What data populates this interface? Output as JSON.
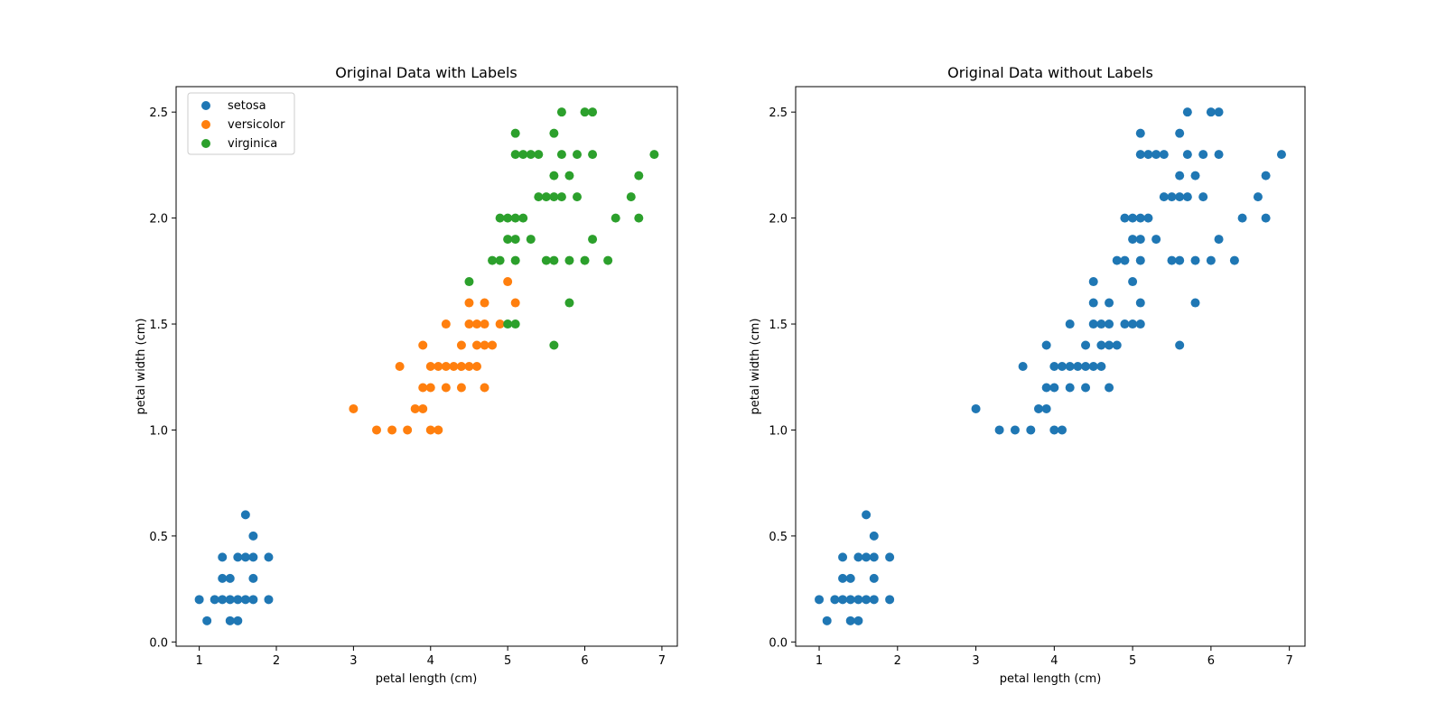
{
  "chart_data": [
    {
      "type": "scatter",
      "title": "Original Data with Labels",
      "xlabel": "petal length (cm)",
      "ylabel": "petal width (cm)",
      "xlim": [
        0.7,
        7.2
      ],
      "ylim": [
        -0.02,
        2.62
      ],
      "xticks": [
        1,
        2,
        3,
        4,
        5,
        6,
        7
      ],
      "yticks": [
        0.0,
        0.5,
        1.0,
        1.5,
        2.0,
        2.5
      ],
      "grid": false,
      "legend": "top-left",
      "series": [
        {
          "name": "setosa",
          "color": "#1f77b4",
          "points": [
            [
              1.0,
              0.2
            ],
            [
              1.1,
              0.1
            ],
            [
              1.2,
              0.2
            ],
            [
              1.3,
              0.2
            ],
            [
              1.3,
              0.3
            ],
            [
              1.3,
              0.4
            ],
            [
              1.4,
              0.1
            ],
            [
              1.4,
              0.2
            ],
            [
              1.4,
              0.3
            ],
            [
              1.5,
              0.1
            ],
            [
              1.5,
              0.2
            ],
            [
              1.5,
              0.4
            ],
            [
              1.6,
              0.2
            ],
            [
              1.6,
              0.4
            ],
            [
              1.6,
              0.6
            ],
            [
              1.7,
              0.2
            ],
            [
              1.7,
              0.3
            ],
            [
              1.7,
              0.4
            ],
            [
              1.7,
              0.5
            ],
            [
              1.9,
              0.2
            ],
            [
              1.9,
              0.4
            ]
          ]
        },
        {
          "name": "versicolor",
          "color": "#ff7f0e",
          "points": [
            [
              3.0,
              1.1
            ],
            [
              3.3,
              1.0
            ],
            [
              3.5,
              1.0
            ],
            [
              3.6,
              1.3
            ],
            [
              3.7,
              1.0
            ],
            [
              3.8,
              1.1
            ],
            [
              3.9,
              1.1
            ],
            [
              3.9,
              1.2
            ],
            [
              3.9,
              1.4
            ],
            [
              4.0,
              1.0
            ],
            [
              4.0,
              1.2
            ],
            [
              4.0,
              1.3
            ],
            [
              4.1,
              1.0
            ],
            [
              4.1,
              1.3
            ],
            [
              4.2,
              1.2
            ],
            [
              4.2,
              1.3
            ],
            [
              4.2,
              1.5
            ],
            [
              4.3,
              1.3
            ],
            [
              4.4,
              1.2
            ],
            [
              4.4,
              1.3
            ],
            [
              4.4,
              1.4
            ],
            [
              4.5,
              1.3
            ],
            [
              4.5,
              1.5
            ],
            [
              4.5,
              1.6
            ],
            [
              4.6,
              1.3
            ],
            [
              4.6,
              1.4
            ],
            [
              4.6,
              1.5
            ],
            [
              4.7,
              1.2
            ],
            [
              4.7,
              1.4
            ],
            [
              4.7,
              1.5
            ],
            [
              4.7,
              1.6
            ],
            [
              4.8,
              1.4
            ],
            [
              4.9,
              1.5
            ],
            [
              5.0,
              1.7
            ],
            [
              5.1,
              1.6
            ]
          ]
        },
        {
          "name": "virginica",
          "color": "#2ca02c",
          "points": [
            [
              4.5,
              1.7
            ],
            [
              4.8,
              1.8
            ],
            [
              4.9,
              1.8
            ],
            [
              4.9,
              2.0
            ],
            [
              5.0,
              1.5
            ],
            [
              5.0,
              1.9
            ],
            [
              5.0,
              2.0
            ],
            [
              5.1,
              1.5
            ],
            [
              5.1,
              1.8
            ],
            [
              5.1,
              1.9
            ],
            [
              5.1,
              2.0
            ],
            [
              5.1,
              2.3
            ],
            [
              5.1,
              2.4
            ],
            [
              5.2,
              2.0
            ],
            [
              5.2,
              2.3
            ],
            [
              5.3,
              1.9
            ],
            [
              5.3,
              2.3
            ],
            [
              5.4,
              2.1
            ],
            [
              5.4,
              2.3
            ],
            [
              5.5,
              1.8
            ],
            [
              5.5,
              2.1
            ],
            [
              5.6,
              1.4
            ],
            [
              5.6,
              1.8
            ],
            [
              5.6,
              2.1
            ],
            [
              5.6,
              2.2
            ],
            [
              5.6,
              2.4
            ],
            [
              5.7,
              2.1
            ],
            [
              5.7,
              2.3
            ],
            [
              5.7,
              2.5
            ],
            [
              5.8,
              1.6
            ],
            [
              5.8,
              1.8
            ],
            [
              5.8,
              2.2
            ],
            [
              5.9,
              2.1
            ],
            [
              5.9,
              2.3
            ],
            [
              6.0,
              1.8
            ],
            [
              6.0,
              2.5
            ],
            [
              6.1,
              1.9
            ],
            [
              6.1,
              2.3
            ],
            [
              6.1,
              2.5
            ],
            [
              6.3,
              1.8
            ],
            [
              6.4,
              2.0
            ],
            [
              6.6,
              2.1
            ],
            [
              6.7,
              2.0
            ],
            [
              6.7,
              2.2
            ],
            [
              6.9,
              2.3
            ]
          ]
        }
      ]
    },
    {
      "type": "scatter",
      "title": "Original Data without Labels",
      "xlabel": "petal length (cm)",
      "ylabel": "petal width (cm)",
      "xlim": [
        0.7,
        7.2
      ],
      "ylim": [
        -0.02,
        2.62
      ],
      "xticks": [
        1,
        2,
        3,
        4,
        5,
        6,
        7
      ],
      "yticks": [
        0.0,
        0.5,
        1.0,
        1.5,
        2.0,
        2.5
      ],
      "grid": false,
      "legend": "none",
      "series": [
        {
          "color": "#1f77b4",
          "points": [
            [
              1.0,
              0.2
            ],
            [
              1.1,
              0.1
            ],
            [
              1.2,
              0.2
            ],
            [
              1.3,
              0.2
            ],
            [
              1.3,
              0.3
            ],
            [
              1.3,
              0.4
            ],
            [
              1.4,
              0.1
            ],
            [
              1.4,
              0.2
            ],
            [
              1.4,
              0.3
            ],
            [
              1.5,
              0.1
            ],
            [
              1.5,
              0.2
            ],
            [
              1.5,
              0.4
            ],
            [
              1.6,
              0.2
            ],
            [
              1.6,
              0.4
            ],
            [
              1.6,
              0.6
            ],
            [
              1.7,
              0.2
            ],
            [
              1.7,
              0.3
            ],
            [
              1.7,
              0.4
            ],
            [
              1.7,
              0.5
            ],
            [
              1.9,
              0.2
            ],
            [
              1.9,
              0.4
            ],
            [
              3.0,
              1.1
            ],
            [
              3.3,
              1.0
            ],
            [
              3.5,
              1.0
            ],
            [
              3.6,
              1.3
            ],
            [
              3.7,
              1.0
            ],
            [
              3.8,
              1.1
            ],
            [
              3.9,
              1.1
            ],
            [
              3.9,
              1.2
            ],
            [
              3.9,
              1.4
            ],
            [
              4.0,
              1.0
            ],
            [
              4.0,
              1.2
            ],
            [
              4.0,
              1.3
            ],
            [
              4.1,
              1.0
            ],
            [
              4.1,
              1.3
            ],
            [
              4.2,
              1.2
            ],
            [
              4.2,
              1.3
            ],
            [
              4.2,
              1.5
            ],
            [
              4.3,
              1.3
            ],
            [
              4.4,
              1.2
            ],
            [
              4.4,
              1.3
            ],
            [
              4.4,
              1.4
            ],
            [
              4.5,
              1.3
            ],
            [
              4.5,
              1.5
            ],
            [
              4.5,
              1.6
            ],
            [
              4.6,
              1.3
            ],
            [
              4.6,
              1.4
            ],
            [
              4.6,
              1.5
            ],
            [
              4.7,
              1.2
            ],
            [
              4.7,
              1.4
            ],
            [
              4.7,
              1.5
            ],
            [
              4.7,
              1.6
            ],
            [
              4.8,
              1.4
            ],
            [
              4.9,
              1.5
            ],
            [
              5.0,
              1.7
            ],
            [
              5.1,
              1.6
            ],
            [
              4.5,
              1.7
            ],
            [
              4.8,
              1.8
            ],
            [
              4.9,
              1.8
            ],
            [
              4.9,
              2.0
            ],
            [
              5.0,
              1.5
            ],
            [
              5.0,
              1.9
            ],
            [
              5.0,
              2.0
            ],
            [
              5.1,
              1.5
            ],
            [
              5.1,
              1.8
            ],
            [
              5.1,
              1.9
            ],
            [
              5.1,
              2.0
            ],
            [
              5.1,
              2.3
            ],
            [
              5.1,
              2.4
            ],
            [
              5.2,
              2.0
            ],
            [
              5.2,
              2.3
            ],
            [
              5.3,
              1.9
            ],
            [
              5.3,
              2.3
            ],
            [
              5.4,
              2.1
            ],
            [
              5.4,
              2.3
            ],
            [
              5.5,
              1.8
            ],
            [
              5.5,
              2.1
            ],
            [
              5.6,
              1.4
            ],
            [
              5.6,
              1.8
            ],
            [
              5.6,
              2.1
            ],
            [
              5.6,
              2.2
            ],
            [
              5.6,
              2.4
            ],
            [
              5.7,
              2.1
            ],
            [
              5.7,
              2.3
            ],
            [
              5.7,
              2.5
            ],
            [
              5.8,
              1.6
            ],
            [
              5.8,
              1.8
            ],
            [
              5.8,
              2.2
            ],
            [
              5.9,
              2.1
            ],
            [
              5.9,
              2.3
            ],
            [
              6.0,
              1.8
            ],
            [
              6.0,
              2.5
            ],
            [
              6.1,
              1.9
            ],
            [
              6.1,
              2.3
            ],
            [
              6.1,
              2.5
            ],
            [
              6.3,
              1.8
            ],
            [
              6.4,
              2.0
            ],
            [
              6.6,
              2.1
            ],
            [
              6.7,
              2.0
            ],
            [
              6.7,
              2.2
            ],
            [
              6.9,
              2.3
            ]
          ]
        }
      ]
    }
  ]
}
